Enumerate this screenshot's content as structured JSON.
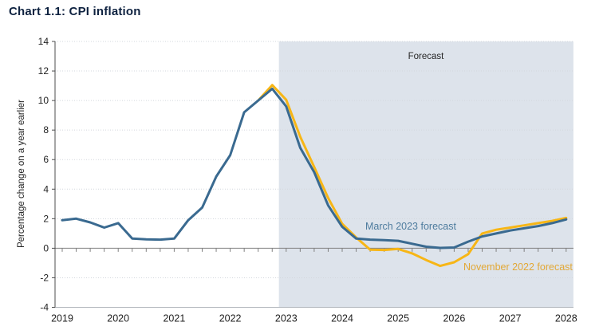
{
  "chart_data": {
    "type": "line",
    "title": "Chart 1.1: CPI inflation",
    "ylabel": "Percentage change on a year earlier",
    "ylim": [
      -4,
      14
    ],
    "ytick_values": [
      14,
      12,
      10,
      8,
      6,
      4,
      2,
      0,
      -2,
      -4
    ],
    "ytick_labels": [
      "14",
      "12",
      "10",
      "8",
      "6",
      "4",
      "2",
      "0",
      "-2",
      "-4"
    ],
    "xtick_labels": [
      "2019",
      "2020",
      "2021",
      "2022",
      "2023",
      "2024",
      "2025",
      "2026",
      "2027",
      "2028"
    ],
    "x_start_year": 2019,
    "x_frequency": "quarterly",
    "grid": "dotted-horizontal",
    "legend_position": "inline-annotations",
    "forecast": {
      "label": "Forecast",
      "start_year": 2022.87,
      "end_year": 2028.13
    },
    "series": [
      {
        "name": "November 2022 forecast",
        "color": "#f7b616",
        "label_color": "#e2a836",
        "start_year": 2022.5,
        "quarterly_values": [
          10.0,
          11.05,
          10.05,
          7.55,
          5.5,
          3.4,
          1.65,
          0.72,
          -0.1,
          -0.12,
          -0.05,
          -0.35,
          -0.8,
          -1.2,
          -0.95,
          -0.4,
          1.0,
          1.25,
          1.4,
          1.55,
          1.7,
          1.85,
          2.05
        ]
      },
      {
        "name": "March 2023 forecast",
        "color": "#3a6a90",
        "label_color": "#4e7c9e",
        "start_year": 2019.0,
        "quarterly_values": [
          1.9,
          2.0,
          1.75,
          1.4,
          1.7,
          0.65,
          0.6,
          0.58,
          0.65,
          1.9,
          2.75,
          4.85,
          6.3,
          9.2,
          10.0,
          10.8,
          9.6,
          6.8,
          5.15,
          2.9,
          1.45,
          0.65,
          0.58,
          0.55,
          0.5,
          0.3,
          0.1,
          0.02,
          0.05,
          0.45,
          0.8,
          1.0,
          1.2,
          1.35,
          1.5,
          1.7,
          1.95
        ]
      }
    ],
    "colors": {
      "title": "#0e2240",
      "forecast_band": "#dde3eb",
      "gridline": "#d3d7dd",
      "zero_axis": "#808080",
      "y_axis": "#4d4d4d",
      "plot_border": "#b0b5bb",
      "tick_text": "#1f1f1f",
      "forecast_text": "#262626"
    }
  }
}
